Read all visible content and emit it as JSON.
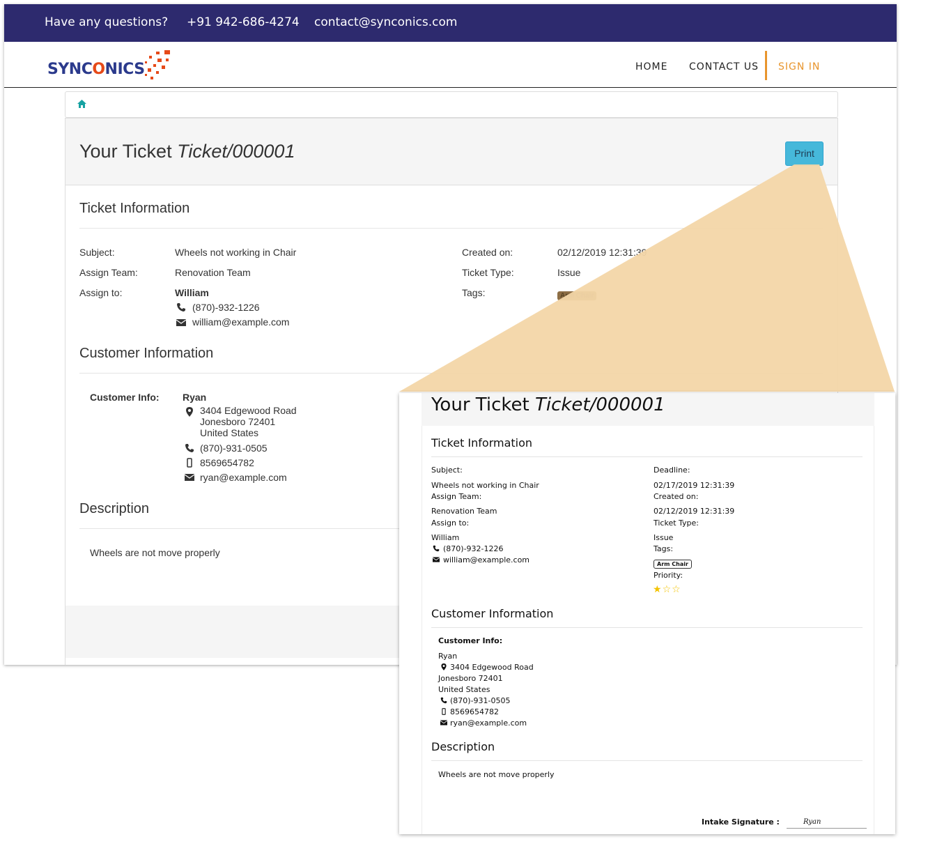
{
  "topbar": {
    "question": "Have any questions?",
    "phone": "+91 942-686-4274",
    "email": "contact@synconics.com"
  },
  "brand": {
    "logo_prefix": "SYNC",
    "logo_o": "O",
    "logo_suffix": "NICS"
  },
  "nav": {
    "home": "HOME",
    "contact": "CONTACT US",
    "signin": "SIGN IN"
  },
  "ticket": {
    "heading": "Your Ticket",
    "number": "Ticket/000001",
    "print_label": "Print"
  },
  "ticket_info": {
    "title": "Ticket Information",
    "subject_label": "Subject:",
    "subject": "Wheels not working in Chair",
    "team_label": "Assign Team:",
    "team": "Renovation Team",
    "assign_label": "Assign to:",
    "assignee": "William",
    "assignee_phone": "(870)-932-1226",
    "assignee_email": "william@example.com",
    "created_label": "Created on:",
    "created": "02/12/2019 12:31:39",
    "type_label": "Ticket Type:",
    "type": "Issue",
    "tags_label": "Tags:",
    "tag": "Arm Chair"
  },
  "customer": {
    "title": "Customer Information",
    "label": "Customer Info:",
    "name": "Ryan",
    "street": "3404 Edgewood Road",
    "city": "Jonesboro 72401",
    "country": "United States",
    "phone": "(870)-931-0505",
    "mobile": "8569654782",
    "email": "ryan@example.com"
  },
  "description": {
    "title": "Description",
    "text": "Wheels are not move properly"
  },
  "print_preview": {
    "deadline_label": "Deadline:",
    "deadline": "02/17/2019 12:31:39",
    "priority_label": "Priority:",
    "priority_stars": 1,
    "priority_max": 3,
    "signature_label": "Intake Signature :",
    "signature": "Ryan"
  },
  "colors": {
    "topbar": "#2d2a6e",
    "accent": "#e8952d",
    "print_button": "#46b8da",
    "zoom_beam": "#f3d6a8",
    "star": "#f3c300"
  }
}
